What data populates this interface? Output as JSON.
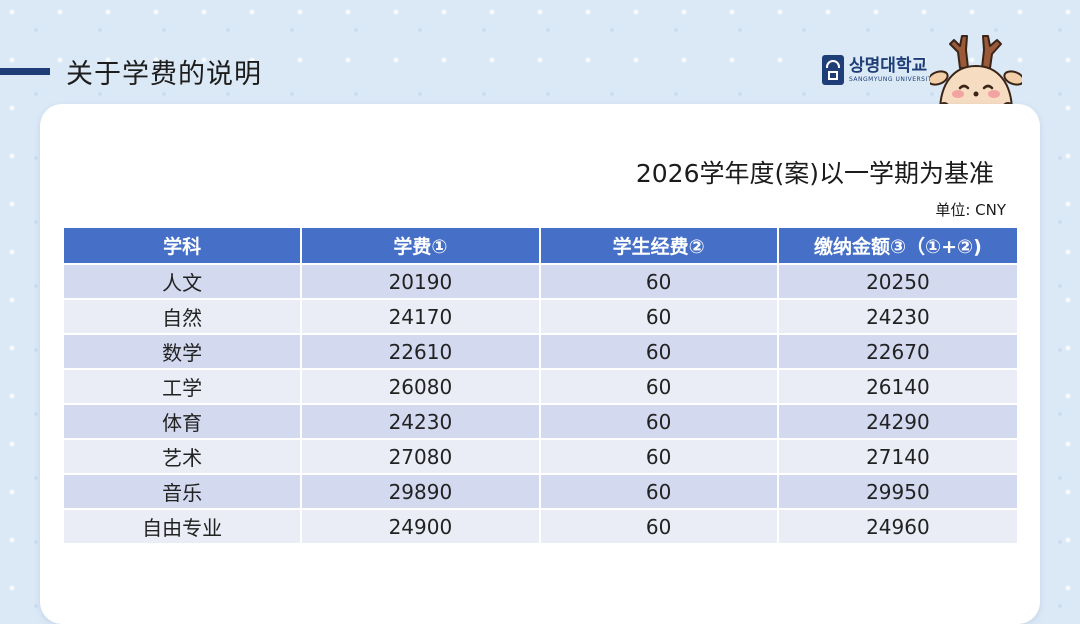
{
  "header": {
    "title": "关于学费的说明"
  },
  "logo": {
    "name": "상명대학교",
    "subtitle": "SANGMYUNG UNIVERSITY"
  },
  "card": {
    "subtitle": "2026学年度(案)以一学期为基准",
    "unit": "单位: CNY"
  },
  "table": {
    "headers": [
      "学科",
      "学费①",
      "学生经费②",
      "缴纳金额③（①+②)"
    ],
    "rows": [
      [
        "人文",
        "20190",
        "60",
        "20250"
      ],
      [
        "自然",
        "24170",
        "60",
        "24230"
      ],
      [
        "数学",
        "22610",
        "60",
        "22670"
      ],
      [
        "工学",
        "26080",
        "60",
        "26140"
      ],
      [
        "体育",
        "24230",
        "60",
        "24290"
      ],
      [
        "艺术",
        "27080",
        "60",
        "27140"
      ],
      [
        "音乐",
        "29890",
        "60",
        "29950"
      ],
      [
        "自由专业",
        "24900",
        "60",
        "24960"
      ]
    ]
  },
  "colors": {
    "header_bg": "#4670c8",
    "accent": "#1f3e78",
    "row_odd": "#d3d9ef",
    "row_even": "#eaedf6",
    "background": "#dbe9f6"
  },
  "icons": {
    "logo": "university-emblem-icon",
    "mascot": "deer-mascot-icon"
  }
}
